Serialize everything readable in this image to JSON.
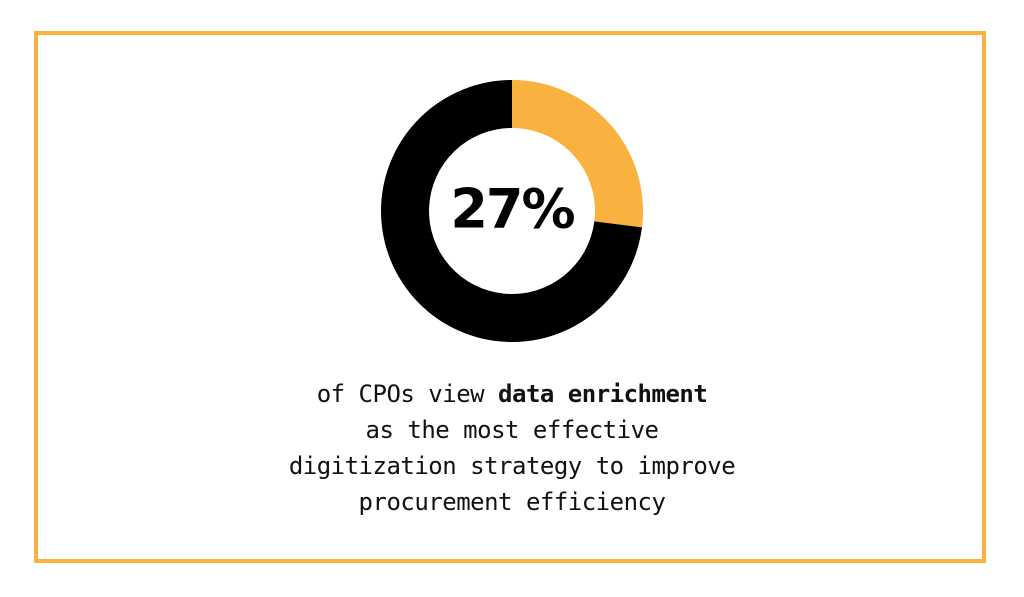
{
  "chart_data": {
    "type": "pie",
    "variant": "donut",
    "center_label": "27%",
    "slices": [
      {
        "value": 27,
        "color": "#F9B23F"
      },
      {
        "value": 73,
        "color": "#000000"
      }
    ]
  },
  "caption": {
    "line1_pre": "of CPOs view ",
    "line1_bold": "data enrichment",
    "line2": "as the most effective",
    "line3": "digitization strategy to improve",
    "line4": "procurement efficiency"
  },
  "colors": {
    "accent": "#F9B23F",
    "dark": "#000000",
    "background": "#FFFFFF"
  }
}
